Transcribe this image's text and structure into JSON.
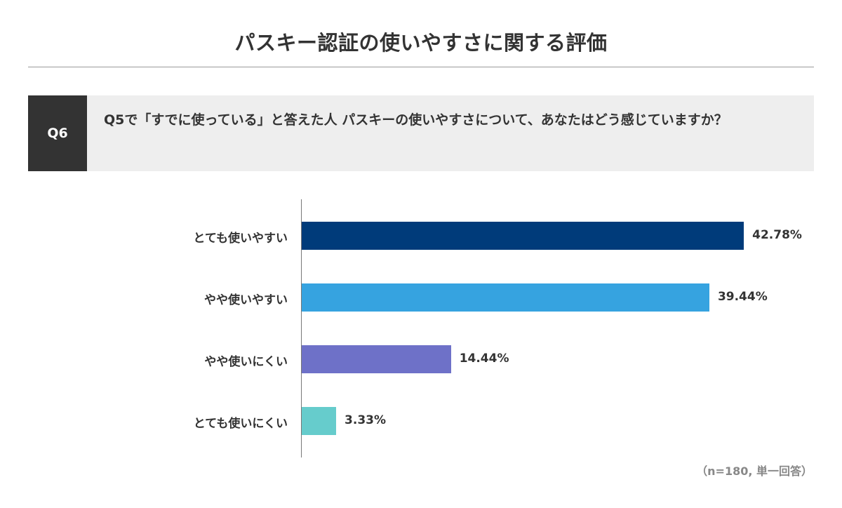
{
  "header": {
    "title": "パスキー認証の使いやすさに関する評価"
  },
  "question": {
    "label": "Q6",
    "text": "Q5で「すでに使っている」と答えた人 パスキーの使いやすさについて、あなたはどう感じていますか？"
  },
  "footnote": "（n=180, 単一回答）",
  "chart_data": {
    "type": "bar",
    "orientation": "horizontal",
    "title": "パスキー認証の使いやすさに関する評価",
    "categories": [
      "とても使いやすい",
      "やや使いやすい",
      "やや使いにくい",
      "とても使いにくい"
    ],
    "values": [
      42.78,
      39.44,
      14.44,
      3.33
    ],
    "value_labels": [
      "42.78%",
      "39.44%",
      "14.44%",
      "3.33%"
    ],
    "colors": [
      "#003b7a",
      "#36a3e0",
      "#6e71c8",
      "#66cccc"
    ],
    "xlabel": "",
    "ylabel": "",
    "unit": "%",
    "grid": false,
    "legend": null,
    "sample_note": "（n=180, 単一回答）"
  }
}
